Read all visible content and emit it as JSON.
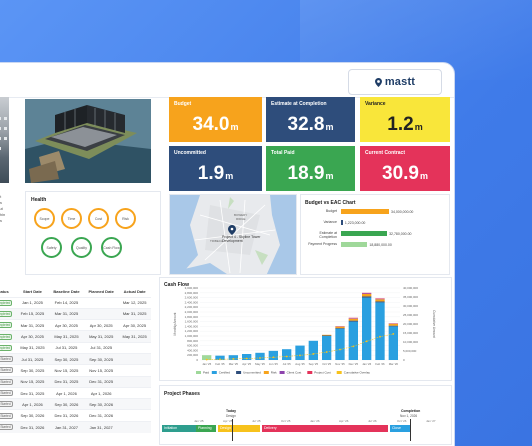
{
  "brand": {
    "name": "mastt"
  },
  "kpis": {
    "budget": {
      "label": "Budget",
      "value": "34.0",
      "unit": "m",
      "color": "#f7a31c"
    },
    "estimate": {
      "label": "Estimate at Completion",
      "value": "32.8",
      "unit": "m",
      "color": "#2e4d7b"
    },
    "variance": {
      "label": "Variance",
      "value": "1.2",
      "unit": "m",
      "color": "#f9e63a"
    },
    "uncommitted": {
      "label": "Uncommitted",
      "value": "1.9",
      "unit": "m",
      "color": "#2e4d7b"
    },
    "total_paid": {
      "label": "Total Paid",
      "value": "18.9",
      "unit": "m",
      "color": "#3aa651"
    },
    "current_contract": {
      "label": "Current Contract",
      "value": "30.9",
      "unit": "m",
      "color": "#e4335a"
    }
  },
  "side_text": [
    "ject",
    "of a",
    ", but",
    "within",
    "th a",
    "gy"
  ],
  "health": {
    "title": "Health",
    "items": [
      {
        "label": "Scope",
        "color": "#f7a31c"
      },
      {
        "label": "Time",
        "color": "#f7a31c"
      },
      {
        "label": "Cost",
        "color": "#f7a31c"
      },
      {
        "label": "Risk",
        "color": "#f7a31c"
      },
      {
        "label": "Safety",
        "color": "#3aa651"
      },
      {
        "label": "Quality",
        "color": "#3aa651"
      },
      {
        "label": "Cash Flow",
        "color": "#3aa651"
      }
    ]
  },
  "map": {
    "pin_label": "Project 4 - Skyline Tower Development",
    "place_labels": [
      "BOWERY",
      "RIDGE",
      "TRIBECA"
    ]
  },
  "eac": {
    "title": "Budget vs EAC Chart",
    "rows": [
      {
        "label": "Budget",
        "value": "34,000,000.00",
        "color": "#f7a31c",
        "fraction": 1.0
      },
      {
        "label": "Variance",
        "value": "1,223,000.00",
        "color": "#2e4d7b",
        "fraction": 0.04
      },
      {
        "label": "Estimate at Completion",
        "value": "32,780,000.00",
        "color": "#3aa651",
        "fraction": 0.96
      },
      {
        "label": "Payment Progress",
        "value": "18,880,000.00",
        "color": "#9fd89a",
        "fraction": 0.55
      }
    ]
  },
  "schedule": {
    "headers": [
      "Status",
      "Start Date",
      "Baseline Date",
      "Planned Date",
      "Actual Date"
    ],
    "rows": [
      [
        "Completed",
        "Jan 1, 2025",
        "Feb 14, 2025",
        "",
        "Mar 12, 2025"
      ],
      [
        "Completed",
        "Feb 15, 2025",
        "Mar 31, 2025",
        "",
        "Mar 31, 2025"
      ],
      [
        "Completed",
        "Mar 31, 2025",
        "Apr 30, 2025",
        "Apr 30, 2025",
        "Apr 30, 2025"
      ],
      [
        "Completed",
        "Apr 30, 2025",
        "May 31, 2025",
        "May 31, 2025",
        "May 31, 2025"
      ],
      [
        "Completed",
        "May 31, 2025",
        "Jul 31, 2025",
        "Jul 31, 2025",
        ""
      ],
      [
        "Not Started",
        "Jul 31, 2025",
        "Sep 30, 2025",
        "Sep 30, 2025",
        ""
      ],
      [
        "Not Started",
        "Sep 30, 2025",
        "Nov 15, 2025",
        "Nov 15, 2025",
        ""
      ],
      [
        "Not Started",
        "Nov 15, 2025",
        "Dec 31, 2025",
        "Dec 31, 2025",
        ""
      ],
      [
        "Not Started",
        "Dec 31, 2025",
        "Apr 1, 2026",
        "Apr 1, 2026",
        ""
      ],
      [
        "Not Started",
        "Apr 1, 2026",
        "Sep 30, 2026",
        "Sep 30, 2026",
        ""
      ],
      [
        "Not Started",
        "Sep 30, 2026",
        "Dec 31, 2026",
        "Dec 31, 2026",
        ""
      ],
      [
        "Not Started",
        "Dec 31, 2026",
        "Jan 31, 2027",
        "Jan 31, 2027",
        ""
      ]
    ]
  },
  "cashflow": {
    "title": "Cash Flow",
    "left_axis_label": "Monthly Amount",
    "right_axis_label": "Cumulative Amount",
    "left_ticks": [
      "3,000,000",
      "2,800,000",
      "2,600,000",
      "2,400,000",
      "2,200,000",
      "2,000,000",
      "1,800,000",
      "1,600,000",
      "1,400,000",
      "1,200,000",
      "1,000,000",
      "800,000",
      "600,000",
      "400,000",
      "200,000",
      "0"
    ],
    "right_ticks": [
      "40,000,000",
      "35,000,000",
      "30,000,000",
      "25,000,000",
      "20,000,000",
      "15,000,000",
      "10,000,000",
      "5,000,000",
      "0"
    ],
    "legend": [
      {
        "label": "Paid",
        "color": "#9fd89a"
      },
      {
        "label": "Certified",
        "color": "#2aa0e0"
      },
      {
        "label": "Uncommitted",
        "color": "#2e4d7b"
      },
      {
        "label": "Risk",
        "color": "#f7a31c"
      },
      {
        "label": "Client Cost",
        "color": "#8e44ad"
      },
      {
        "label": "Project Cost",
        "color": "#e4335a"
      },
      {
        "label": "Cumulative Overlay",
        "color": "#f7c21c"
      }
    ]
  },
  "phases": {
    "title": "Project Phases",
    "today_label": "Today",
    "today_sub": "Design",
    "completion_label": "Completion",
    "completion_date": "Nov 1, 2026",
    "months": [
      "Jan '25",
      "Apr '25",
      "Jul '25",
      "Oct '25",
      "Jan '26",
      "Apr '26",
      "Jul '26",
      "Oct '26",
      "Jan '27"
    ],
    "bars": [
      {
        "label": "Initiation",
        "color": "#2e9e8e"
      },
      {
        "label": "Planning",
        "color": "#3aa651"
      },
      {
        "label": "Design",
        "color": "#f7c21c"
      },
      {
        "label": "Delivery",
        "color": "#e4335a"
      },
      {
        "label": "Close",
        "color": "#2aa0e0"
      }
    ]
  },
  "chart_data": {
    "type": "bar",
    "title": "Cash Flow",
    "ylabel": "Monthly Amount",
    "categories": [
      "Jan '25",
      "Feb '25",
      "Mar '25",
      "Apr '25",
      "May '25",
      "Jun '25",
      "Jul '25",
      "Aug '25",
      "Sep '25",
      "Oct '25",
      "Nov '25",
      "Dec '25",
      "Jan '26",
      "Feb '26",
      "Mar '26"
    ],
    "ylim": [
      0,
      3000000
    ],
    "series": [
      {
        "name": "Paid",
        "values": [
          200000,
          0,
          0,
          0,
          0,
          0,
          0,
          0,
          0,
          0,
          0,
          0,
          0,
          0,
          0
        ]
      },
      {
        "name": "Certified",
        "values": [
          0,
          180000,
          200000,
          250000,
          300000,
          380000,
          450000,
          600000,
          800000,
          1000000,
          1300000,
          1600000,
          2600000,
          2400000,
          1400000
        ]
      },
      {
        "name": "Uncommitted",
        "values": [
          0,
          0,
          0,
          0,
          0,
          0,
          0,
          0,
          0,
          20000,
          30000,
          40000,
          50000,
          40000,
          30000
        ]
      },
      {
        "name": "Risk",
        "values": [
          0,
          0,
          0,
          0,
          0,
          0,
          0,
          0,
          0,
          30000,
          60000,
          80000,
          100000,
          90000,
          80000
        ]
      },
      {
        "name": "Client Cost",
        "values": [
          0,
          0,
          0,
          0,
          0,
          0,
          0,
          0,
          0,
          0,
          10000,
          20000,
          30000,
          20000,
          10000
        ]
      },
      {
        "name": "Project Cost",
        "values": [
          0,
          0,
          0,
          0,
          0,
          0,
          0,
          0,
          0,
          0,
          10000,
          20000,
          20000,
          20000,
          10000
        ]
      }
    ],
    "cumulative": [
      200000,
      380000,
      580000,
      830000,
      1130000,
      1510000,
      1960000,
      2560000,
      3360000,
      4410000,
      5820000,
      7580000,
      10380000,
      12950000,
      14480000
    ],
    "y2lim": [
      0,
      40000000
    ]
  }
}
